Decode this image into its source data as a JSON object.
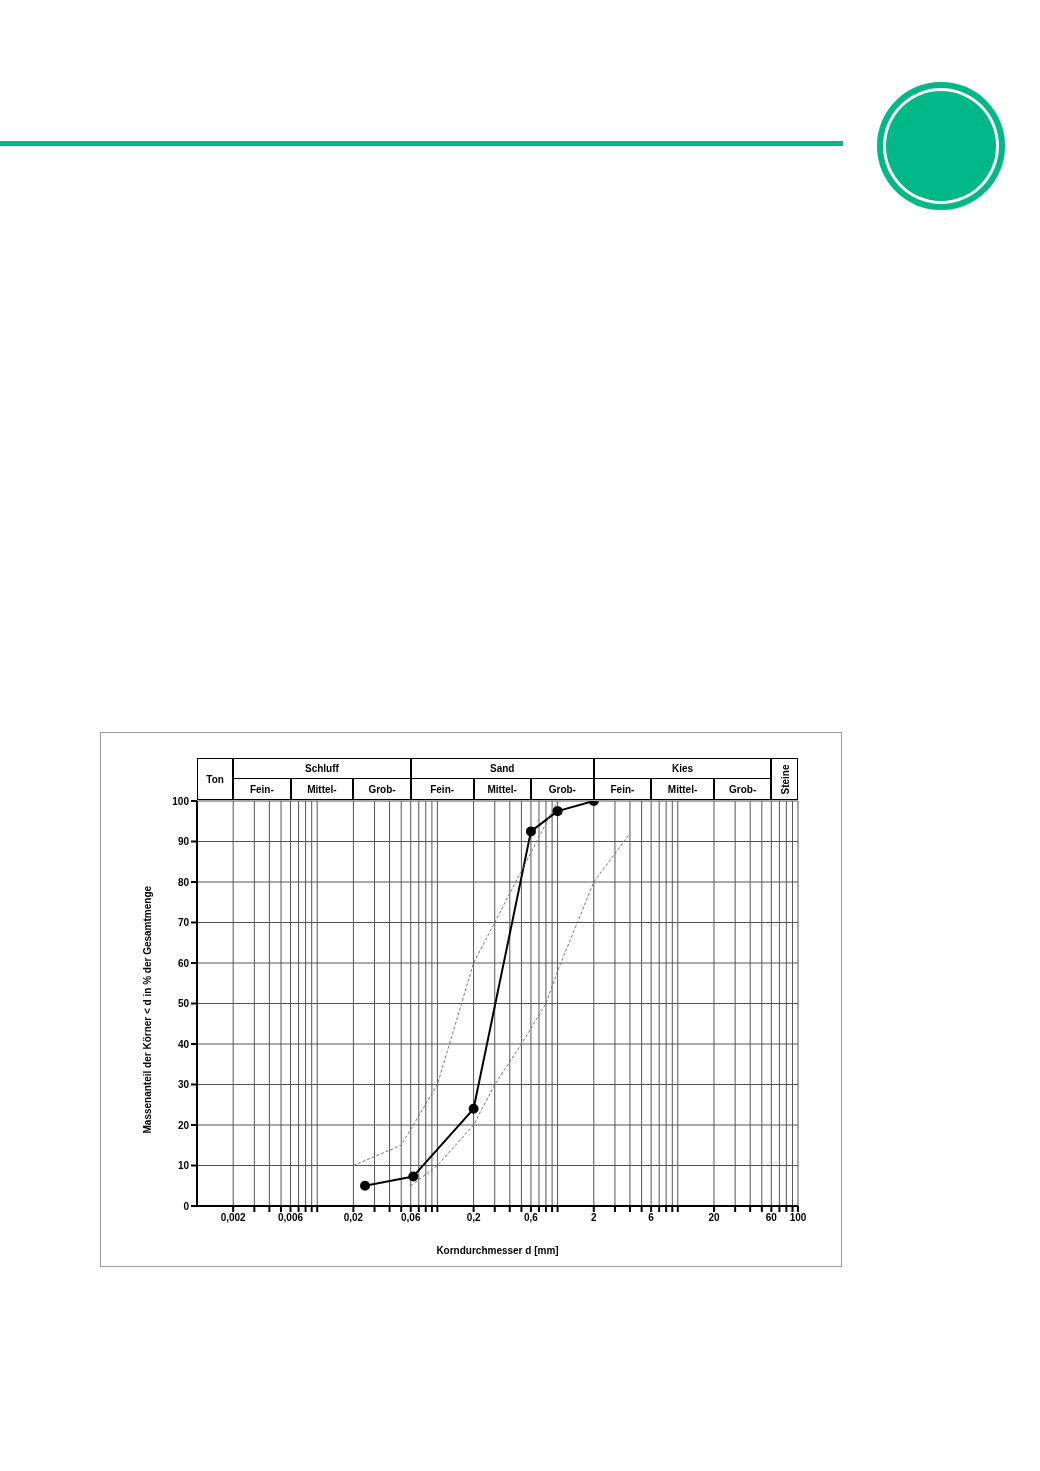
{
  "chart_data": {
    "type": "line",
    "xlabel": "Korndurchmesser d [mm]",
    "ylabel": "Massenanteil der Körner < d in % der Gesamtmenge",
    "annotations": [
      "Ton",
      "Schluff",
      "Sand",
      "Kies",
      "Steine",
      "Fein-",
      "Mittel-",
      "Grob-",
      "Fein-",
      "Mittel-",
      "Grob-",
      "Fein-",
      "Mittel-",
      "Grob-"
    ],
    "log": "x",
    "xlim": [
      0.001,
      100
    ],
    "xticks": [
      {
        "value": 0.002,
        "label": "0,002"
      },
      {
        "value": 0.003,
        "label": null
      },
      {
        "value": 0.004,
        "label": null
      },
      {
        "value": 0.005,
        "label": null
      },
      {
        "value": 0.006,
        "label": "0,006"
      },
      {
        "value": 0.007,
        "label": null
      },
      {
        "value": 0.008,
        "label": null
      },
      {
        "value": 0.009,
        "label": null
      },
      {
        "value": 0.01,
        "label": null
      },
      {
        "value": 0.02,
        "label": "0,02"
      },
      {
        "value": 0.03,
        "label": null
      },
      {
        "value": 0.04,
        "label": null
      },
      {
        "value": 0.05,
        "label": null
      },
      {
        "value": 0.06,
        "label": "0,06"
      },
      {
        "value": 0.07,
        "label": null
      },
      {
        "value": 0.08,
        "label": null
      },
      {
        "value": 0.09,
        "label": null
      },
      {
        "value": 0.1,
        "label": null
      },
      {
        "value": 0.2,
        "label": "0,2"
      },
      {
        "value": 0.3,
        "label": null
      },
      {
        "value": 0.4,
        "label": null
      },
      {
        "value": 0.5,
        "label": null
      },
      {
        "value": 0.6,
        "label": "0,6"
      },
      {
        "value": 0.7,
        "label": null
      },
      {
        "value": 0.8,
        "label": null
      },
      {
        "value": 0.9,
        "label": null
      },
      {
        "value": 1,
        "label": null
      },
      {
        "value": 2,
        "label": "2"
      },
      {
        "value": 3,
        "label": null
      },
      {
        "value": 4,
        "label": null
      },
      {
        "value": 5,
        "label": null
      },
      {
        "value": 6,
        "label": "6"
      },
      {
        "value": 7,
        "label": null
      },
      {
        "value": 8,
        "label": null
      },
      {
        "value": 9,
        "label": null
      },
      {
        "value": 10,
        "label": null
      },
      {
        "value": 20,
        "label": "20"
      },
      {
        "value": 30,
        "label": null
      },
      {
        "value": 40,
        "label": null
      },
      {
        "value": 50,
        "label": null
      },
      {
        "value": 60,
        "label": "60"
      },
      {
        "value": 70,
        "label": null
      },
      {
        "value": 80,
        "label": null
      },
      {
        "value": 90,
        "label": null
      },
      {
        "value": 100,
        "label": "100"
      }
    ],
    "ylim": [
      0,
      100
    ],
    "yticks": [
      0,
      10,
      20,
      30,
      40,
      50,
      60,
      70,
      80,
      90,
      100
    ],
    "grid": true,
    "series": [
      {
        "color": "#000000",
        "marker": "circle",
        "line_style": "solid",
        "x": [
          0.025,
          0.063,
          0.2,
          0.6,
          1,
          2
        ],
        "values": [
          5,
          7.3,
          24,
          92.5,
          97.5,
          100
        ]
      },
      {
        "color": "#777777",
        "marker": "none",
        "line_style": "dashed",
        "x": [
          0.02,
          0.05,
          0.1,
          0.2,
          0.3,
          1
        ],
        "values": [
          10,
          15,
          30,
          60,
          70,
          100
        ]
      },
      {
        "color": "#777777",
        "marker": "none",
        "line_style": "dashed",
        "x": [
          0.06,
          0.1,
          0.2,
          0.3,
          0.5,
          0.8,
          1,
          2,
          4
        ],
        "values": [
          5,
          10,
          20,
          30,
          40,
          50,
          58,
          80,
          92
        ]
      }
    ]
  }
}
